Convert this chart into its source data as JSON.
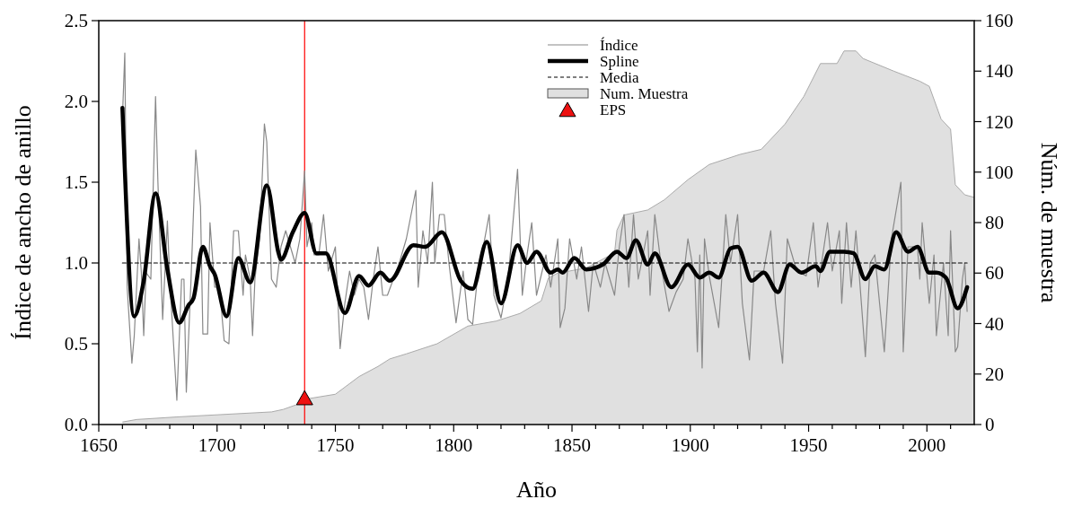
{
  "chart_data": {
    "type": "line",
    "xlabel": "Año",
    "ylabel": "Índice de ancho de anillo",
    "y2label": "Núm. de muestra",
    "xlim": [
      1650,
      2020
    ],
    "xticks": [
      1650,
      {
        "value": 1660,
        "label": null
      },
      {
        "value": 1670,
        "label": null
      },
      {
        "value": 1680,
        "label": null
      },
      {
        "value": 1690,
        "label": null
      },
      1700,
      {
        "value": 1710,
        "label": null
      },
      {
        "value": 1720,
        "label": null
      },
      {
        "value": 1730,
        "label": null
      },
      {
        "value": 1740,
        "label": null
      },
      1750,
      {
        "value": 1760,
        "label": null
      },
      {
        "value": 1770,
        "label": null
      },
      {
        "value": 1780,
        "label": null
      },
      {
        "value": 1790,
        "label": null
      },
      1800,
      {
        "value": 1810,
        "label": null
      },
      {
        "value": 1820,
        "label": null
      },
      {
        "value": 1830,
        "label": null
      },
      {
        "value": 1840,
        "label": null
      },
      1850,
      {
        "value": 1860,
        "label": null
      },
      {
        "value": 1870,
        "label": null
      },
      {
        "value": 1880,
        "label": null
      },
      {
        "value": 1890,
        "label": null
      },
      1900,
      {
        "value": 1910,
        "label": null
      },
      {
        "value": 1920,
        "label": null
      },
      {
        "value": 1930,
        "label": null
      },
      {
        "value": 1940,
        "label": null
      },
      1950,
      {
        "value": 1960,
        "label": null
      },
      {
        "value": 1970,
        "label": null
      },
      {
        "value": 1980,
        "label": null
      },
      {
        "value": 1990,
        "label": null
      },
      2000,
      {
        "value": 2010,
        "label": null
      }
    ],
    "ylim": [
      0,
      2.5
    ],
    "yticks": [
      {
        "value": 0,
        "label": "0.0"
      },
      {
        "value": 0.5,
        "label": "0.5"
      },
      {
        "value": 1,
        "label": "1.0"
      },
      {
        "value": 1.5,
        "label": "1.5"
      },
      {
        "value": 2,
        "label": "2.0"
      },
      {
        "value": 2.5,
        "label": "2.5"
      }
    ],
    "y2lim": [
      0,
      160
    ],
    "y2ticks": [
      0,
      20,
      40,
      60,
      80,
      100,
      120,
      140,
      160
    ],
    "grid": false,
    "legend": "top",
    "ref_lines": [
      {
        "axis": "x",
        "value": 1737,
        "color": "#ff0000"
      }
    ],
    "series": [
      {
        "name": "Num. Muestra",
        "type": "area",
        "axis": "y2",
        "color": "#e0e0e0",
        "x": [
          1660,
          1666,
          1683,
          1723,
          1728,
          1734,
          1737,
          1750,
          1760,
          1768,
          1773,
          1780,
          1793,
          1806,
          1818,
          1828,
          1837,
          1840,
          1844,
          1856,
          1868,
          1869,
          1872,
          1882,
          1889,
          1899,
          1908,
          1921,
          1930,
          1940,
          1948,
          1955,
          1962,
          1965,
          1970,
          1973,
          1986,
          1997,
          2001,
          2006,
          2010,
          2012,
          2016,
          2020
        ],
        "values": [
          1,
          2,
          3,
          5,
          6,
          8,
          10,
          12,
          19,
          23,
          26,
          28,
          32,
          39,
          41,
          44,
          49,
          58,
          60,
          62,
          68,
          77,
          83,
          85,
          89,
          97,
          103,
          107,
          109,
          119,
          130,
          143,
          143,
          148,
          148,
          145,
          140,
          136,
          134,
          121,
          117,
          95,
          91,
          90
        ]
      },
      {
        "name": "Índice",
        "color": "#888888",
        "x": [
          1660,
          1661,
          1662,
          1664,
          1665,
          1667,
          1668,
          1669,
          1670,
          1672,
          1674,
          1675,
          1677,
          1679,
          1680,
          1683,
          1685,
          1686,
          1687,
          1689,
          1691,
          1693,
          1694,
          1696,
          1697,
          1699,
          1701,
          1703,
          1705,
          1707,
          1709,
          1711,
          1712,
          1714,
          1715,
          1716,
          1718,
          1720,
          1721,
          1723,
          1725,
          1727,
          1729,
          1731,
          1733,
          1735,
          1737,
          1738,
          1740,
          1741,
          1743,
          1745,
          1747,
          1750,
          1752,
          1754,
          1756,
          1758,
          1760,
          1762,
          1764,
          1766,
          1768,
          1770,
          1772,
          1777,
          1780,
          1784,
          1785,
          1787,
          1789,
          1791,
          1792,
          1794,
          1796,
          1798,
          1801,
          1804,
          1806,
          1808,
          1810,
          1815,
          1817,
          1820,
          1823,
          1827,
          1829,
          1831,
          1833,
          1835,
          1839,
          1841,
          1844,
          1845,
          1847,
          1849,
          1852,
          1854,
          1857,
          1859,
          1862,
          1864,
          1868,
          1870,
          1872,
          1874,
          1876,
          1878,
          1882,
          1883,
          1885,
          1888,
          1891,
          1894,
          1897,
          1899,
          1902,
          1903,
          1904,
          1905,
          1906,
          1908,
          1912,
          1915,
          1917,
          1920,
          1922,
          1925,
          1927,
          1931,
          1934,
          1936,
          1939,
          1941,
          1945,
          1949,
          1952,
          1954,
          1958,
          1960,
          1963,
          1964,
          1966,
          1968,
          1970,
          1974,
          1976,
          1978,
          1982,
          1985,
          1989,
          1990,
          1992,
          1996,
          1997,
          1998,
          2001,
          2003,
          2004,
          2007,
          2009,
          2010,
          2012,
          2013,
          2015,
          2016,
          2017
        ],
        "values": [
          1.9,
          2.3,
          0.85,
          0.38,
          0.55,
          1.15,
          0.94,
          0.55,
          0.94,
          0.9,
          2.03,
          1.5,
          0.65,
          1.26,
          0.9,
          0.15,
          0.9,
          0.9,
          0.2,
          0.9,
          1.7,
          1.35,
          0.56,
          0.56,
          1.25,
          0.85,
          0.85,
          0.52,
          0.5,
          1.2,
          1.2,
          0.8,
          1.05,
          0.9,
          0.55,
          0.9,
          1.15,
          1.86,
          1.75,
          0.9,
          0.85,
          1.1,
          1.2,
          1.1,
          1.0,
          1.15,
          1.57,
          1.1,
          1.25,
          1.05,
          1.05,
          1.3,
          0.95,
          1.1,
          0.47,
          0.75,
          0.95,
          0.8,
          0.9,
          0.85,
          0.65,
          0.9,
          1.1,
          0.8,
          0.8,
          1.0,
          1.15,
          1.45,
          0.85,
          1.2,
          1.0,
          1.5,
          1.0,
          1.3,
          1.3,
          1.0,
          0.63,
          0.95,
          0.65,
          0.62,
          0.9,
          1.3,
          0.8,
          0.66,
          0.9,
          1.58,
          0.8,
          1.05,
          1.25,
          0.8,
          1.05,
          0.85,
          1.15,
          0.6,
          0.72,
          1.15,
          0.9,
          1.1,
          0.7,
          1.0,
          0.85,
          1.0,
          0.8,
          1.1,
          1.3,
          0.85,
          1.3,
          0.9,
          1.2,
          0.8,
          1.3,
          0.95,
          0.7,
          0.82,
          0.9,
          1.15,
          0.9,
          0.45,
          1.05,
          0.35,
          1.15,
          0.92,
          0.6,
          1.3,
          1.0,
          1.3,
          0.75,
          0.4,
          0.95,
          0.95,
          1.2,
          0.75,
          0.38,
          1.15,
          0.95,
          0.92,
          1.25,
          0.85,
          1.25,
          0.95,
          1.2,
          0.75,
          1.25,
          0.85,
          1.2,
          0.42,
          1.0,
          1.05,
          0.45,
          1.15,
          1.5,
          0.45,
          1.1,
          1.1,
          0.9,
          1.25,
          0.75,
          1.05,
          0.55,
          1.0,
          0.55,
          1.2,
          0.45,
          0.48,
          0.9,
          1.0,
          0.7
        ]
      },
      {
        "name": "Spline",
        "color": "#000000",
        "x": [
          1660,
          1665,
          1669,
          1674,
          1679,
          1684,
          1688,
          1690,
          1694,
          1697,
          1699,
          1704,
          1709,
          1714,
          1721,
          1726,
          1727,
          1732,
          1737,
          1742,
          1746,
          1754,
          1760,
          1764,
          1769,
          1773,
          1783,
          1788,
          1795,
          1803,
          1808,
          1814,
          1820,
          1827,
          1831,
          1835,
          1841,
          1844,
          1846,
          1851,
          1856,
          1863,
          1869,
          1873,
          1877,
          1882,
          1885,
          1892,
          1899,
          1904,
          1908,
          1912,
          1917,
          1920,
          1926,
          1931,
          1937,
          1942,
          1947,
          1953,
          1955,
          1959,
          1965,
          1969,
          1974,
          1978,
          1982,
          1987,
          1992,
          1996,
          2001,
          2004,
          2008,
          2013,
          2017
        ],
        "values": [
          1.96,
          0.67,
          0.89,
          1.43,
          0.96,
          0.63,
          0.74,
          0.78,
          1.1,
          0.98,
          0.93,
          0.67,
          1.03,
          0.88,
          1.48,
          1.06,
          1.02,
          1.19,
          1.31,
          1.06,
          1.06,
          0.69,
          0.92,
          0.86,
          0.94,
          0.89,
          1.11,
          1.1,
          1.19,
          0.89,
          0.84,
          1.13,
          0.75,
          1.11,
          1.0,
          1.07,
          0.94,
          0.96,
          0.94,
          1.03,
          0.96,
          0.99,
          1.07,
          1.03,
          1.14,
          0.99,
          1.06,
          0.85,
          0.99,
          0.91,
          0.94,
          0.91,
          1.09,
          1.1,
          0.89,
          0.94,
          0.82,
          0.99,
          0.94,
          0.98,
          0.95,
          1.07,
          1.07,
          1.06,
          0.9,
          0.98,
          0.96,
          1.19,
          1.07,
          1.1,
          0.94,
          0.94,
          0.91,
          0.72,
          0.85
        ]
      },
      {
        "name": "Media",
        "color": "#000000",
        "line_style": "dashed",
        "x": [
          1660,
          2017
        ],
        "values": [
          1,
          1
        ]
      },
      {
        "name": "EPS",
        "type": "scatter",
        "marker": "triangle",
        "color": "#ee1111",
        "x": [
          1737
        ],
        "values": [
          0.16
        ]
      }
    ]
  }
}
